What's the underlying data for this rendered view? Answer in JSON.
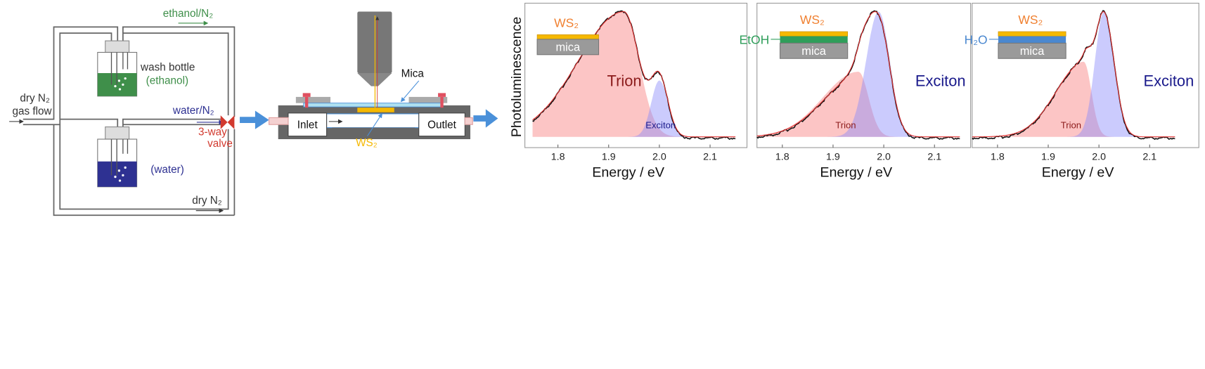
{
  "setup": {
    "ethanol_line": "ethanol/N₂",
    "wash_bottle": "wash bottle",
    "ethanol": "(ethanol)",
    "dry_n2_in_1": "dry N₂",
    "dry_n2_in_2": "gas flow",
    "water_line": "water/N₂",
    "valve_1": "3-way",
    "valve_2": "valve",
    "water": "(water)",
    "dry_n2": "dry N₂",
    "inlet": "Inlet",
    "outlet": "Outlet",
    "mica": "Mica",
    "ws2": "WS₂",
    "colors": {
      "ethanol": "#3f8f4a",
      "water": "#2e3192",
      "valve": "#d23a2f",
      "ws2": "#f5b800",
      "flow": "#4a90d9"
    }
  },
  "chart_data": [
    {
      "type": "line",
      "title": "",
      "xlabel": "Energy / eV",
      "ylabel": "Photoluminescence",
      "xlim": [
        1.75,
        2.15
      ],
      "xticks": [
        "1.8",
        "1.9",
        "2.0",
        "2.1"
      ],
      "inset": {
        "top": "WS₂",
        "substrate": "mica",
        "interlayer": ""
      },
      "peaks": [
        {
          "name": "Trion",
          "center": 1.93,
          "amp": 1.0,
          "sigma_left": 0.09,
          "sigma_right": 0.03
        },
        {
          "name": "Exciton",
          "center": 2.0,
          "amp": 0.45,
          "sigma_left": 0.016,
          "sigma_right": 0.017
        }
      ]
    },
    {
      "type": "line",
      "title": "",
      "xlabel": "Energy / eV",
      "ylabel": "",
      "xlim": [
        1.75,
        2.15
      ],
      "xticks": [
        "1.8",
        "1.9",
        "2.0",
        "2.1"
      ],
      "inset": {
        "top": "WS₂",
        "substrate": "mica",
        "interlayer": "EtOH"
      },
      "peaks": [
        {
          "name": "Trion",
          "center": 1.95,
          "amp": 0.52,
          "sigma_left": 0.07,
          "sigma_right": 0.02
        },
        {
          "name": "Exciton",
          "center": 1.99,
          "amp": 1.0,
          "sigma_left": 0.025,
          "sigma_right": 0.022
        }
      ]
    },
    {
      "type": "line",
      "title": "",
      "xlabel": "Energy / eV",
      "ylabel": "",
      "xlim": [
        1.75,
        2.15
      ],
      "xticks": [
        "1.8",
        "1.9",
        "2.0",
        "2.1"
      ],
      "inset": {
        "top": "WS₂",
        "substrate": "mica",
        "interlayer": "H₂O"
      },
      "peaks": [
        {
          "name": "Trion",
          "center": 1.97,
          "amp": 0.6,
          "sigma_left": 0.055,
          "sigma_right": 0.015
        },
        {
          "name": "Exciton",
          "center": 2.01,
          "amp": 1.0,
          "sigma_left": 0.018,
          "sigma_right": 0.02
        }
      ]
    }
  ]
}
